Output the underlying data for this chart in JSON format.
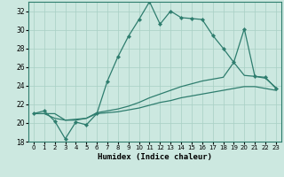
{
  "xlabel": "Humidex (Indice chaleur)",
  "background_color": "#cce8e0",
  "line_color": "#2e7d6e",
  "xlim": [
    -0.5,
    23.5
  ],
  "ylim": [
    18,
    33
  ],
  "xticks": [
    0,
    1,
    2,
    3,
    4,
    5,
    6,
    7,
    8,
    9,
    10,
    11,
    12,
    13,
    14,
    15,
    16,
    17,
    18,
    19,
    20,
    21,
    22,
    23
  ],
  "yticks": [
    18,
    20,
    22,
    24,
    26,
    28,
    30,
    32
  ],
  "grid_color": "#a8cfc4",
  "curve1_x": [
    0,
    1,
    2,
    3,
    4,
    5,
    6,
    7,
    8,
    9,
    10,
    11,
    12,
    13,
    14,
    15,
    16,
    17,
    18,
    19,
    20,
    21,
    22,
    23
  ],
  "curve1_y": [
    21.0,
    21.3,
    20.2,
    18.3,
    20.1,
    19.8,
    21.0,
    24.5,
    27.1,
    29.3,
    31.1,
    33.0,
    30.6,
    32.0,
    31.3,
    31.2,
    31.1,
    29.4,
    28.0,
    26.5,
    30.1,
    25.0,
    24.9,
    23.7
  ],
  "curve2_x": [
    0,
    1,
    2,
    3,
    4,
    5,
    6,
    7,
    8,
    9,
    10,
    11,
    12,
    13,
    14,
    15,
    16,
    17,
    18,
    19,
    20,
    21,
    22,
    23
  ],
  "curve2_y": [
    21.0,
    21.0,
    20.5,
    20.3,
    20.4,
    20.5,
    21.1,
    21.3,
    21.5,
    21.8,
    22.2,
    22.7,
    23.1,
    23.5,
    23.9,
    24.2,
    24.5,
    24.7,
    24.9,
    26.5,
    25.1,
    25.0,
    24.8,
    23.8
  ],
  "curve3_x": [
    0,
    1,
    2,
    3,
    4,
    5,
    6,
    7,
    8,
    9,
    10,
    11,
    12,
    13,
    14,
    15,
    16,
    17,
    18,
    19,
    20,
    21,
    22,
    23
  ],
  "curve3_y": [
    21.0,
    21.0,
    21.0,
    20.3,
    20.3,
    20.5,
    21.0,
    21.1,
    21.2,
    21.4,
    21.6,
    21.9,
    22.2,
    22.4,
    22.7,
    22.9,
    23.1,
    23.3,
    23.5,
    23.7,
    23.9,
    23.9,
    23.7,
    23.5
  ]
}
